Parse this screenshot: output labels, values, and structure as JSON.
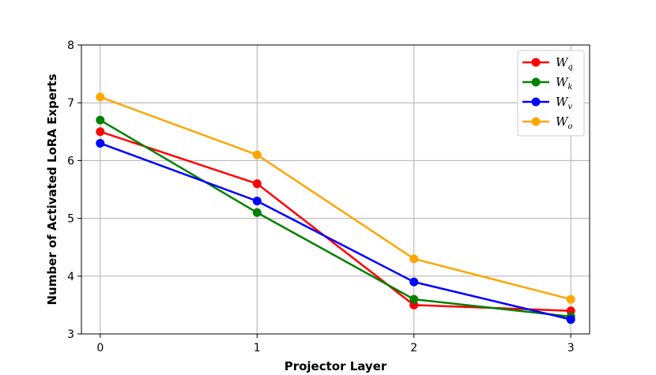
{
  "chart_data": {
    "type": "line",
    "title": "",
    "xlabel": "Projector Layer",
    "ylabel": "Number of Activated LoRA Experts",
    "x": [
      0,
      1,
      2,
      3
    ],
    "xticks": [
      "0",
      "1",
      "2",
      "3"
    ],
    "yticks": [
      "3",
      "4",
      "5",
      "6",
      "7",
      "8"
    ],
    "xlim": [
      -0.12,
      3.12
    ],
    "ylim": [
      3,
      8
    ],
    "grid": true,
    "legend_position": "top-right",
    "series": [
      {
        "name": "W_q",
        "base": "W",
        "sub": "q",
        "color": "#ff0000",
        "values": [
          6.5,
          5.6,
          3.5,
          3.4
        ]
      },
      {
        "name": "W_k",
        "base": "W",
        "sub": "k",
        "color": "#008000",
        "values": [
          6.7,
          5.1,
          3.6,
          3.3
        ]
      },
      {
        "name": "W_v",
        "base": "W",
        "sub": "v",
        "color": "#0000ff",
        "values": [
          6.3,
          5.3,
          3.9,
          3.25
        ]
      },
      {
        "name": "W_o",
        "base": "W",
        "sub": "o",
        "color": "#ffa500",
        "values": [
          7.1,
          6.1,
          4.3,
          3.6
        ]
      }
    ]
  }
}
